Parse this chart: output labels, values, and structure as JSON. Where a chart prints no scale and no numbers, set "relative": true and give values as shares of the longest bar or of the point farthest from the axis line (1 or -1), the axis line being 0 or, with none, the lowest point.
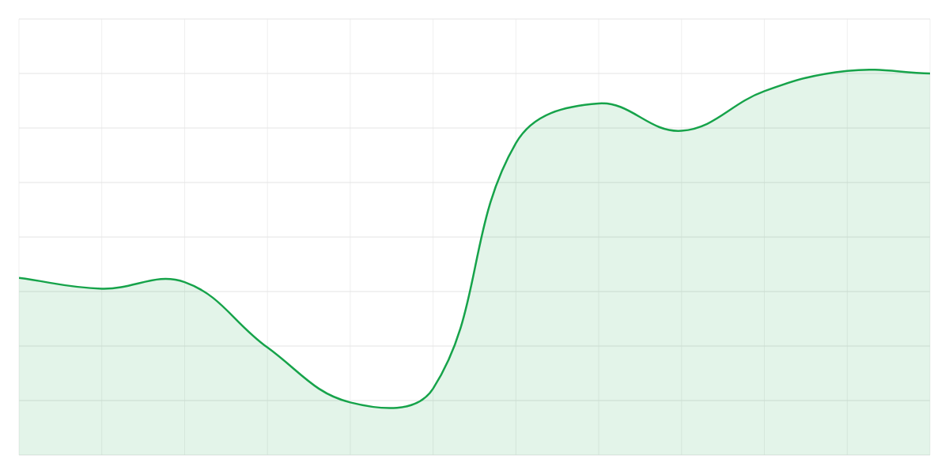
{
  "chart_data": {
    "type": "area",
    "categories": [
      null,
      null,
      null,
      null,
      null,
      null,
      null,
      null,
      null,
      null,
      null,
      null
    ],
    "values": [
      0.461,
      0.433,
      0.45,
      0.28,
      0.137,
      0.173,
      0.812,
      0.915,
      0.844,
      0.947,
      1,
      0.993
    ],
    "color": "#16a34a",
    "relative": true,
    "grid": true
  }
}
